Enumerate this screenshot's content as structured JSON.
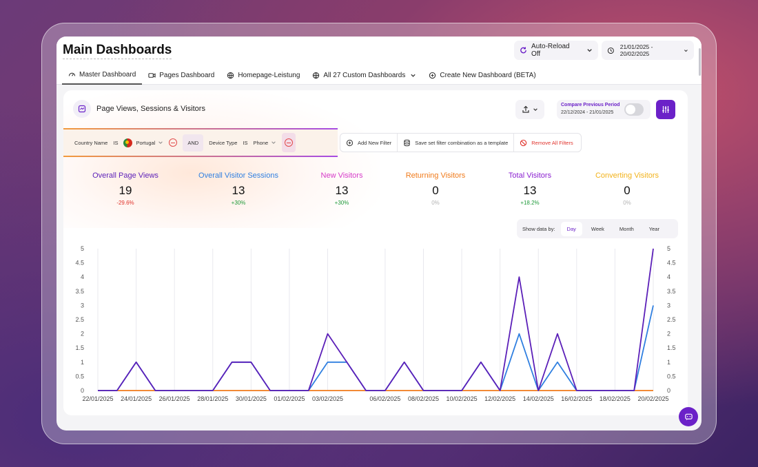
{
  "window": {
    "title": "Main Dashboards"
  },
  "header": {
    "reload_label": "Auto-Reload Off",
    "date_range": "21/01/2025 - 20/02/2025"
  },
  "tabs": [
    {
      "label": "Master Dashboard",
      "icon": "dashboard-icon"
    },
    {
      "label": "Pages Dashboard",
      "icon": "pages-icon"
    },
    {
      "label": "Homepage-Leistung",
      "icon": "globe-icon"
    },
    {
      "label": "All 27 Custom Dashboards",
      "icon": "globe-icon"
    },
    {
      "label": "Create New Dashboard (BETA)",
      "icon": "plus-circle-icon"
    }
  ],
  "card": {
    "title": "Page Views, Sessions & Visitors",
    "compare_label": "Compare Previous Period",
    "compare_range": "22/12/2024 - 21/01/2025"
  },
  "filters": {
    "f1_field": "Country Name",
    "f1_op": "IS",
    "f1_value": "Portugal",
    "joiner": "AND",
    "f2_field": "Device Type",
    "f2_op": "IS",
    "f2_value": "Phone",
    "add_label": "Add New Filter",
    "save_label": "Save set filter combination as a template",
    "remove_label": "Remove All Filters"
  },
  "metrics": [
    {
      "label": "Overall Page Views",
      "value": "19",
      "change": "-29.6%",
      "color": "#5b1fb8",
      "change_color": "#e0322b"
    },
    {
      "label": "Overall Visitor Sessions",
      "value": "13",
      "change": "+30%",
      "color": "#2f7fe0",
      "change_color": "#1f9a3a"
    },
    {
      "label": "New Visitors",
      "value": "13",
      "change": "+30%",
      "color": "#d63ac8",
      "change_color": "#1f9a3a"
    },
    {
      "label": "Returning Visitors",
      "value": "0",
      "change": "0%",
      "color": "#f07a1a",
      "change_color": "#b3b3b3"
    },
    {
      "label": "Total Visitors",
      "value": "13",
      "change": "+18.2%",
      "color": "#8a1fd0",
      "change_color": "#1f9a3a"
    },
    {
      "label": "Converting Visitors",
      "value": "0",
      "change": "0%",
      "color": "#f2b21a",
      "change_color": "#b3b3b3"
    }
  ],
  "show_by": {
    "label": "Show data by:",
    "options": [
      "Day",
      "Week",
      "Month",
      "Year"
    ],
    "selected": "Day"
  },
  "chart_data": {
    "type": "line",
    "x": [
      "22/01/2025",
      "23/01/2025",
      "24/01/2025",
      "25/01/2025",
      "26/01/2025",
      "27/01/2025",
      "28/01/2025",
      "29/01/2025",
      "30/01/2025",
      "31/01/2025",
      "01/02/2025",
      "02/02/2025",
      "03/02/2025",
      "04/02/2025",
      "05/02/2025",
      "06/02/2025",
      "07/02/2025",
      "08/02/2025",
      "09/02/2025",
      "10/02/2025",
      "11/02/2025",
      "12/02/2025",
      "13/02/2025",
      "14/02/2025",
      "15/02/2025",
      "16/02/2025",
      "17/02/2025",
      "18/02/2025",
      "19/02/2025",
      "20/02/2025"
    ],
    "x_tick_labels": [
      "22/01/2025",
      "24/01/2025",
      "26/01/2025",
      "28/01/2025",
      "30/01/2025",
      "01/02/2025",
      "03/02/2025",
      "06/02/2025",
      "08/02/2025",
      "10/02/2025",
      "12/02/2025",
      "14/02/2025",
      "16/02/2025",
      "18/02/2025",
      "20/02/2025"
    ],
    "y_ticks": [
      "0",
      "0.5",
      "1",
      "1.5",
      "2",
      "2.5",
      "3",
      "3.5",
      "4",
      "4.5",
      "5"
    ],
    "ylim": [
      0,
      5
    ],
    "series": [
      {
        "name": "Overall Page Views",
        "color": "#5b1fb8",
        "values": [
          0,
          0,
          1,
          0,
          0,
          0,
          0,
          1,
          1,
          0,
          0,
          0,
          2,
          1,
          0,
          0,
          1,
          0,
          0,
          0,
          1,
          0,
          4,
          0,
          2,
          0,
          0,
          0,
          0,
          5
        ]
      },
      {
        "name": "Overall Visitor Sessions",
        "color": "#2f7fe0",
        "values": [
          0,
          0,
          1,
          0,
          0,
          0,
          0,
          1,
          1,
          0,
          0,
          0,
          1,
          1,
          0,
          0,
          1,
          0,
          0,
          0,
          1,
          0,
          2,
          0,
          1,
          0,
          0,
          0,
          0,
          3
        ]
      },
      {
        "name": "Returning Visitors",
        "color": "#f07a1a",
        "values": [
          0,
          0,
          0,
          0,
          0,
          0,
          0,
          0,
          0,
          0,
          0,
          0,
          0,
          0,
          0,
          0,
          0,
          0,
          0,
          0,
          0,
          0,
          0,
          0,
          0,
          0,
          0,
          0,
          0,
          0
        ]
      }
    ]
  }
}
